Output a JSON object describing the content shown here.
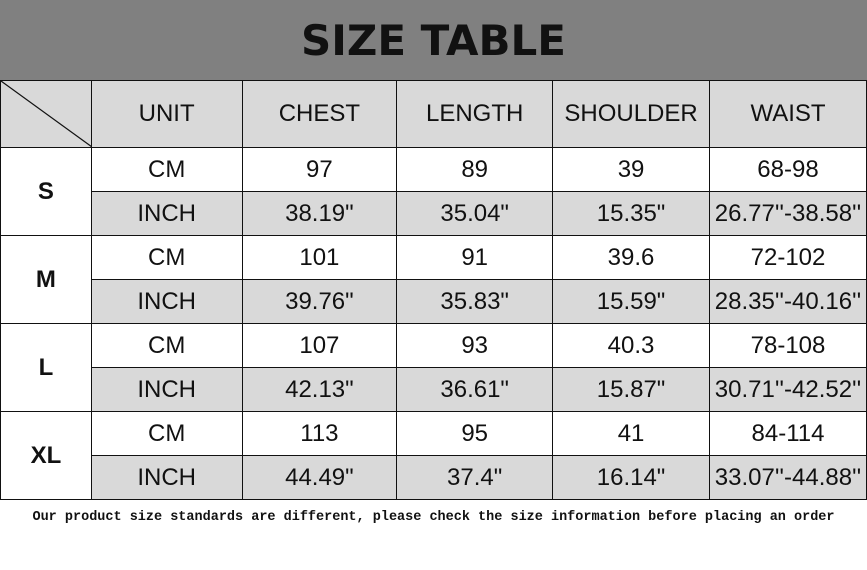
{
  "title": "SIZE TABLE",
  "headers": [
    "UNIT",
    "CHEST",
    "LENGTH",
    "SHOULDER",
    "WAIST"
  ],
  "rows": [
    {
      "size": "S",
      "cm": [
        "CM",
        "97",
        "89",
        "39",
        "68-98"
      ],
      "inch": [
        "INCH",
        "38.19\"",
        "35.04\"",
        "15.35\"",
        "26.77''-38.58''"
      ]
    },
    {
      "size": "M",
      "cm": [
        "CM",
        "101",
        "91",
        "39.6",
        "72-102"
      ],
      "inch": [
        "INCH",
        "39.76\"",
        "35.83\"",
        "15.59\"",
        "28.35''-40.16''"
      ]
    },
    {
      "size": "L",
      "cm": [
        "CM",
        "107",
        "93",
        "40.3",
        "78-108"
      ],
      "inch": [
        "INCH",
        "42.13\"",
        "36.61\"",
        "15.87\"",
        "30.71''-42.52''"
      ]
    },
    {
      "size": "XL",
      "cm": [
        "CM",
        "113",
        "95",
        "41",
        "84-114"
      ],
      "inch": [
        "INCH",
        "44.49\"",
        "37.4\"",
        "16.14\"",
        "33.07''-44.88''"
      ]
    }
  ],
  "note": "Our product size standards are different, please check the size information before placing an order",
  "colors": {
    "title_bg": "#808080",
    "header_bg": "#d9d9d9"
  }
}
